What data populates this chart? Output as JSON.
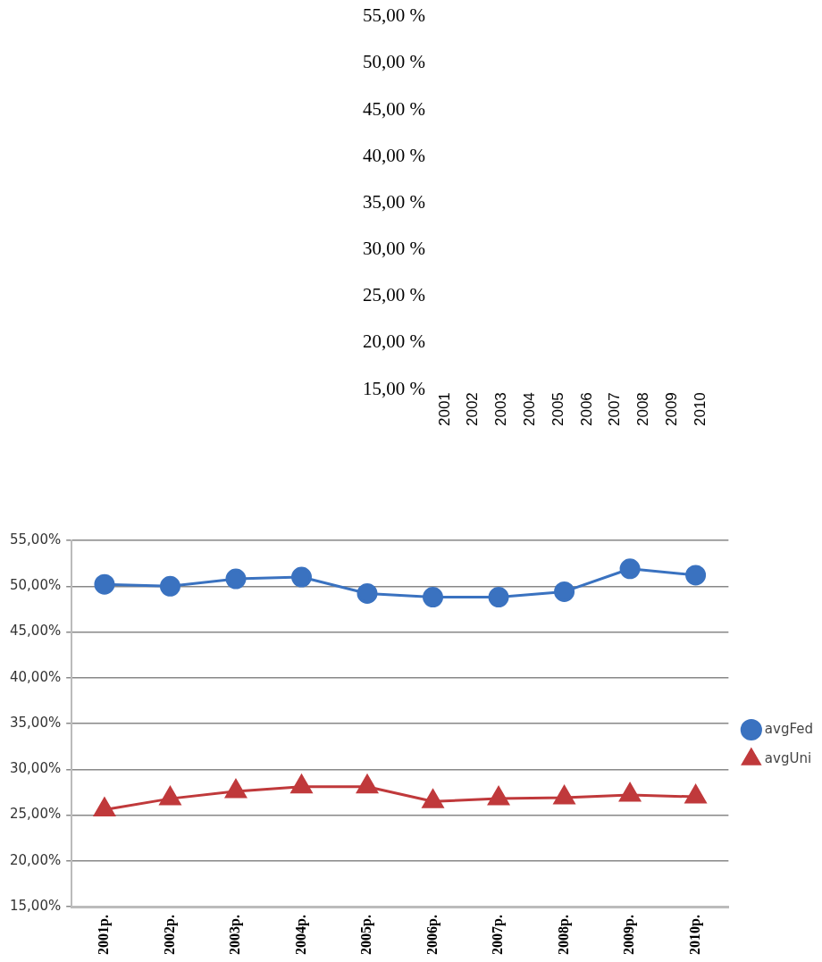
{
  "chart_data": [
    {
      "type": "line",
      "categories": [
        "2001",
        "2002",
        "2003",
        "2004",
        "2005",
        "2006",
        "2007",
        "2008",
        "2009",
        "2010"
      ],
      "ylim": [
        15,
        55
      ],
      "yticks": [
        {
          "value": 15,
          "label": "15,00 %"
        },
        {
          "value": 20,
          "label": "20,00 %"
        },
        {
          "value": 25,
          "label": "25,00 %"
        },
        {
          "value": 30,
          "label": "30,00 %"
        },
        {
          "value": 35,
          "label": "35,00 %"
        },
        {
          "value": 40,
          "label": "40,00 %"
        },
        {
          "value": 45,
          "label": "45,00 %"
        },
        {
          "value": 50,
          "label": "50,00 %"
        },
        {
          "value": 55,
          "label": "55,00 %"
        }
      ]
    },
    {
      "type": "line",
      "categories": [
        "2001р.",
        "2002р.",
        "2003р.",
        "2004р.",
        "2005р.",
        "2006р.",
        "2007р.",
        "2008р.",
        "2009р.",
        "2010р."
      ],
      "ylim": [
        15,
        55
      ],
      "yticks": [
        {
          "value": 15,
          "label": "15,00%"
        },
        {
          "value": 20,
          "label": "20,00%"
        },
        {
          "value": 25,
          "label": "25,00%"
        },
        {
          "value": 30,
          "label": "30,00%"
        },
        {
          "value": 35,
          "label": "35,00%"
        },
        {
          "value": 40,
          "label": "40,00%"
        },
        {
          "value": 45,
          "label": "45,00%"
        },
        {
          "value": 50,
          "label": "50,00%"
        },
        {
          "value": 55,
          "label": "55,00%"
        }
      ],
      "grid": "y",
      "legend": "right",
      "series": [
        {
          "name": "avgFed",
          "color": "#3a72c0",
          "marker": "circle",
          "values": [
            50.2,
            50.0,
            50.8,
            51.0,
            49.2,
            48.8,
            48.8,
            49.4,
            51.9,
            51.2
          ]
        },
        {
          "name": "avgUni",
          "color": "#c0393b",
          "marker": "triangle",
          "values": [
            25.6,
            26.8,
            27.6,
            28.1,
            28.1,
            26.5,
            26.8,
            26.9,
            27.2,
            27.0
          ]
        }
      ]
    }
  ]
}
